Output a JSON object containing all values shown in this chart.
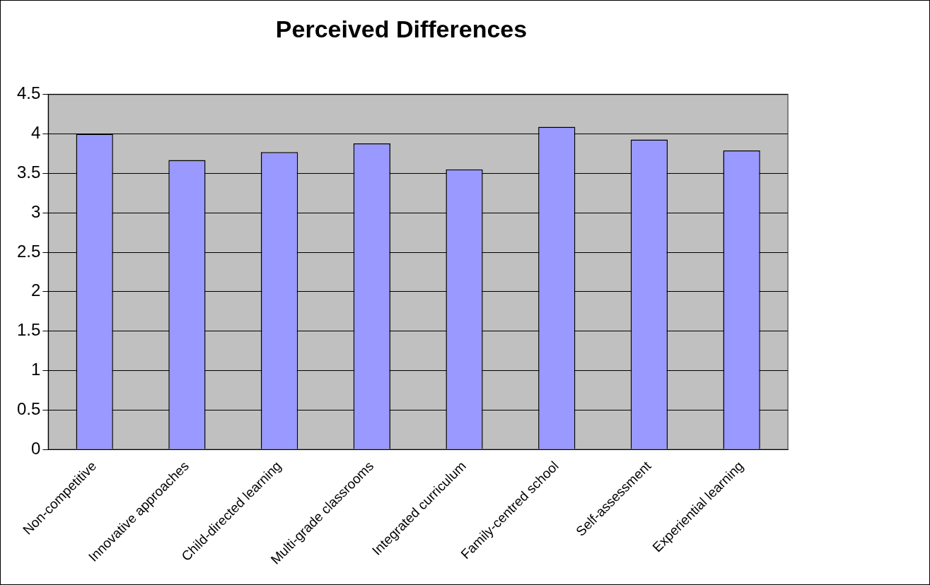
{
  "chart_data": {
    "type": "bar",
    "title": "Perceived Differences",
    "categories": [
      "Non-competitive",
      "Innovative approaches",
      "Child-directed learning",
      "Multi-grade classrooms",
      "Integrated curriculum",
      "Family-centred school",
      "Self-assessment",
      "Experiential learning"
    ],
    "values": [
      4.0,
      3.67,
      3.77,
      3.88,
      3.55,
      4.09,
      3.93,
      3.79
    ],
    "color": "#9999ff",
    "ylim": [
      0,
      4.5
    ],
    "yticks": [
      0,
      0.5,
      1,
      1.5,
      2,
      2.5,
      3,
      3.5,
      4,
      4.5
    ],
    "grid": "y",
    "legend": false
  }
}
